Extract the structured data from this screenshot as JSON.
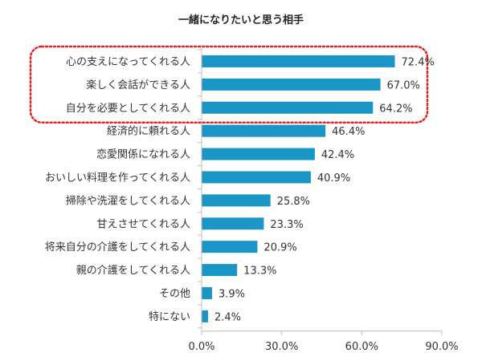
{
  "chart_data": {
    "type": "bar",
    "orientation": "horizontal",
    "title": "一緒になりたいと思う相手",
    "categories": [
      "心の支えになってくれる人",
      "楽しく会話ができる人",
      "自分を必要としてくれる人",
      "経済的に頼れる人",
      "恋愛関係になれる人",
      "おいしい料理を作ってくれる人",
      "掃除や洗濯をしてくれる人",
      "甘えさせてくれる人",
      "将来自分の介護をしてくれる人",
      "親の介護をしてくれる人",
      "その他",
      "特にない"
    ],
    "values": [
      72.4,
      67.0,
      64.2,
      46.4,
      42.4,
      40.9,
      25.8,
      23.3,
      20.9,
      13.3,
      3.9,
      2.4
    ],
    "value_labels": [
      "72.4%",
      "67.0%",
      "64.2%",
      "46.4%",
      "42.4%",
      "40.9%",
      "25.8%",
      "23.3%",
      "20.9%",
      "13.3%",
      "3.9%",
      "2.4%"
    ],
    "xlim": [
      0,
      90
    ],
    "xticks": [
      "0.0%",
      "30.0%",
      "60.0%",
      "90.0%"
    ],
    "highlighted_categories": 3,
    "grid": false,
    "bar_color": "#1a96c6",
    "highlight_color": "#e8231f"
  }
}
